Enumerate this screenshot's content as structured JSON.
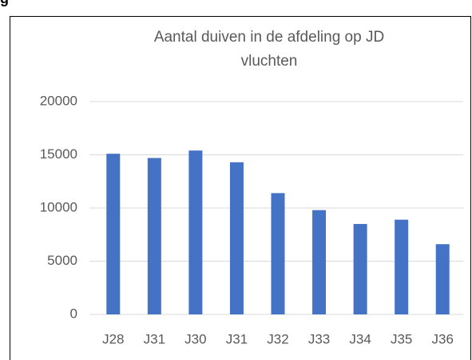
{
  "heading": "g",
  "chart_data": {
    "type": "bar",
    "title": "Aantal duiven in de afdeling op JD vluchten",
    "categories": [
      "J28",
      "J31",
      "J30",
      "J31",
      "J32",
      "J33",
      "J34",
      "J35",
      "J36"
    ],
    "values": [
      15100,
      14700,
      15400,
      14300,
      11400,
      9800,
      8500,
      8900,
      6600
    ],
    "color": "#4472c4",
    "ylim": [
      0,
      20000
    ],
    "yticks": [
      0,
      5000,
      10000,
      15000,
      20000
    ],
    "grid": true
  }
}
